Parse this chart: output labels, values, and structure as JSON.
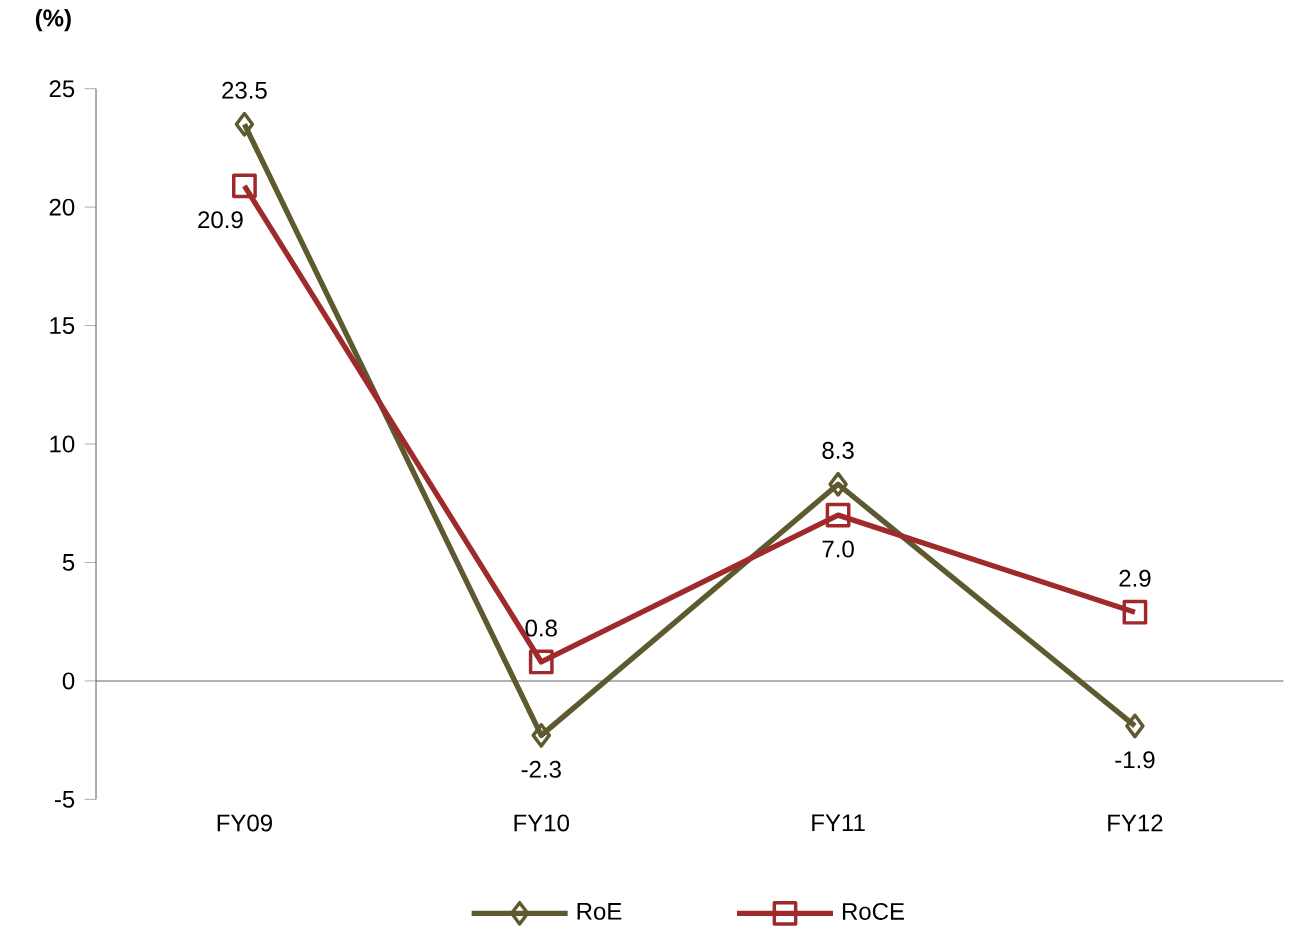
{
  "chart_data": {
    "type": "line",
    "ylabel": "(%)",
    "categories": [
      "FY09",
      "FY10",
      "FY11",
      "FY12"
    ],
    "series": [
      {
        "name": "RoE",
        "color": "#5c5a2e",
        "marker": "diamond",
        "values": [
          23.5,
          -2.3,
          8.3,
          -1.9
        ],
        "value_labels": [
          "23.5",
          "-2.3",
          "8.3",
          "-1.9"
        ]
      },
      {
        "name": "RoCE",
        "color": "#9e2a2b",
        "marker": "square",
        "values": [
          20.9,
          0.8,
          7.0,
          2.9
        ],
        "value_labels": [
          "20.9",
          "0.8",
          "7.0",
          "2.9"
        ]
      }
    ],
    "ylim": [
      -5,
      25
    ],
    "yticks": [
      -5,
      0,
      5,
      10,
      15,
      20,
      25
    ],
    "legend": "bottom",
    "line_style": "solid"
  }
}
